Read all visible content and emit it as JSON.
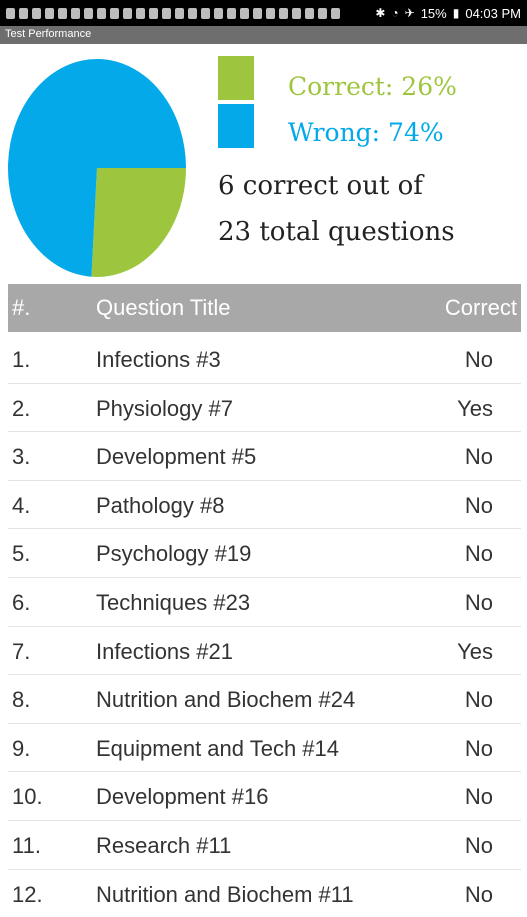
{
  "status_bar": {
    "battery": "15%",
    "time": "04:03 PM",
    "icons": [
      "notification-icon",
      "alarm-icon",
      "download-icon",
      "bluetooth-icon",
      "wifi-icon",
      "airplane-icon",
      "battery-icon"
    ]
  },
  "app_title": "Test Performance",
  "legend": {
    "correct_label": "Correct: 26%",
    "wrong_label": "Wrong: 74%",
    "correct_color": "#9dc63e",
    "wrong_color": "#03a9e8"
  },
  "summary": {
    "line1": "6 correct out of",
    "line2": "23 total questions"
  },
  "chart_data": {
    "type": "pie",
    "categories": [
      "Correct",
      "Wrong"
    ],
    "values": [
      26,
      74
    ],
    "colors": [
      "#9dc63e",
      "#03a9e8"
    ]
  },
  "table": {
    "headers": [
      "#.",
      "Question Title",
      "Correct"
    ],
    "rows": [
      [
        "1.",
        "Infections #3",
        "No"
      ],
      [
        "2.",
        "Physiology #7",
        "Yes"
      ],
      [
        "3.",
        "Development #5",
        "No"
      ],
      [
        "4.",
        "Pathology #8",
        "No"
      ],
      [
        "5.",
        "Psychology #19",
        "No"
      ],
      [
        "6.",
        "Techniques #23",
        "No"
      ],
      [
        "7.",
        "Infections #21",
        "Yes"
      ],
      [
        "8.",
        "Nutrition and Biochem #24",
        "No"
      ],
      [
        "9.",
        "Equipment and Tech #14",
        "No"
      ],
      [
        "10.",
        "Development #16",
        "No"
      ],
      [
        "11.",
        "Research #11",
        "No"
      ],
      [
        "12.",
        "Nutrition and Biochem #11",
        "No"
      ]
    ]
  }
}
